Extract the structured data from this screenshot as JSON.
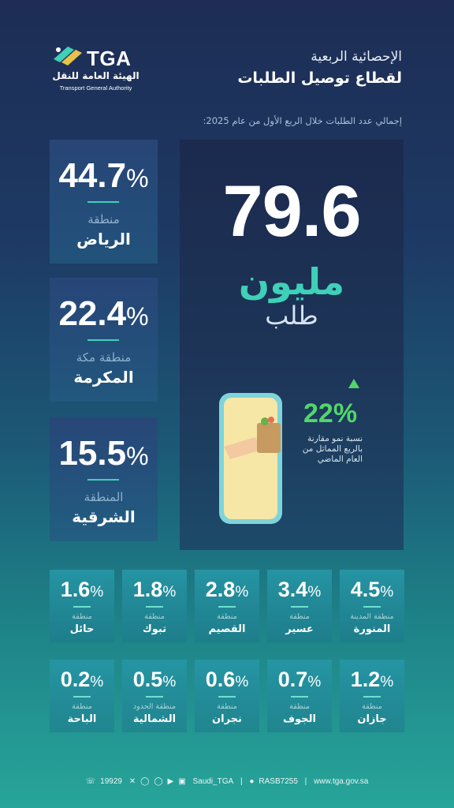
{
  "header": {
    "logo_en": "TGA",
    "logo_ar": "الهيئة العامة للنقل",
    "logo_en_full": "Transport General Authority",
    "title_line1": "الإحصائية الربعية",
    "title_line2": "لقطاع توصيل الطلبات",
    "subtitle": "إجمالي عدد الطلبات خلال الربع الأول من عام 2025:"
  },
  "total": {
    "value": "79.6",
    "unit": "مليون",
    "label": "طلب"
  },
  "growth": {
    "value": "22%",
    "description": "نسبة نمو مقارنة بالربع المماثل من العام الماضي"
  },
  "regions_major": [
    {
      "num": "44.7",
      "pct": "%",
      "sub": "منطقة",
      "name": "الرياض"
    },
    {
      "num": "22.4",
      "pct": "%",
      "sub": "منطقة مكة",
      "name": "المكرمة"
    },
    {
      "num": "15.5",
      "pct": "%",
      "sub": "المنطقة",
      "name": "الشرقية"
    }
  ],
  "regions_row1": [
    {
      "num": "1.6",
      "pct": "%",
      "sub": "منطقة",
      "name": "حائل"
    },
    {
      "num": "1.8",
      "pct": "%",
      "sub": "منطقة",
      "name": "تبوك"
    },
    {
      "num": "2.8",
      "pct": "%",
      "sub": "منطقة",
      "name": "القصيم"
    },
    {
      "num": "3.4",
      "pct": "%",
      "sub": "منطقة",
      "name": "عسير"
    },
    {
      "num": "4.5",
      "pct": "%",
      "sub": "منطقة المدينة",
      "name": "المنورة"
    }
  ],
  "regions_row2": [
    {
      "num": "0.2",
      "pct": "%",
      "sub": "منطقة",
      "name": "الباحة"
    },
    {
      "num": "0.5",
      "pct": "%",
      "sub": "منطقة الحدود",
      "name": "الشمالية"
    },
    {
      "num": "0.6",
      "pct": "%",
      "sub": "منطقة",
      "name": "نجران"
    },
    {
      "num": "0.7",
      "pct": "%",
      "sub": "منطقة",
      "name": "الجوف"
    },
    {
      "num": "1.2",
      "pct": "%",
      "sub": "منطقة",
      "name": "جازان"
    }
  ],
  "footer": {
    "phone": "19929",
    "social": "Saudi_TGA",
    "rasb": "RASB7255",
    "website": "www.tga.gov.sa"
  },
  "colors": {
    "accent_teal": "#3fd0b8",
    "growth_green": "#52d66a"
  },
  "icons": [
    "tga-logo-icon",
    "phone-icon",
    "x-icon",
    "instagram-icon",
    "snapchat-icon",
    "youtube-icon",
    "linkedin-icon",
    "rasb-icon",
    "up-arrow-icon"
  ]
}
